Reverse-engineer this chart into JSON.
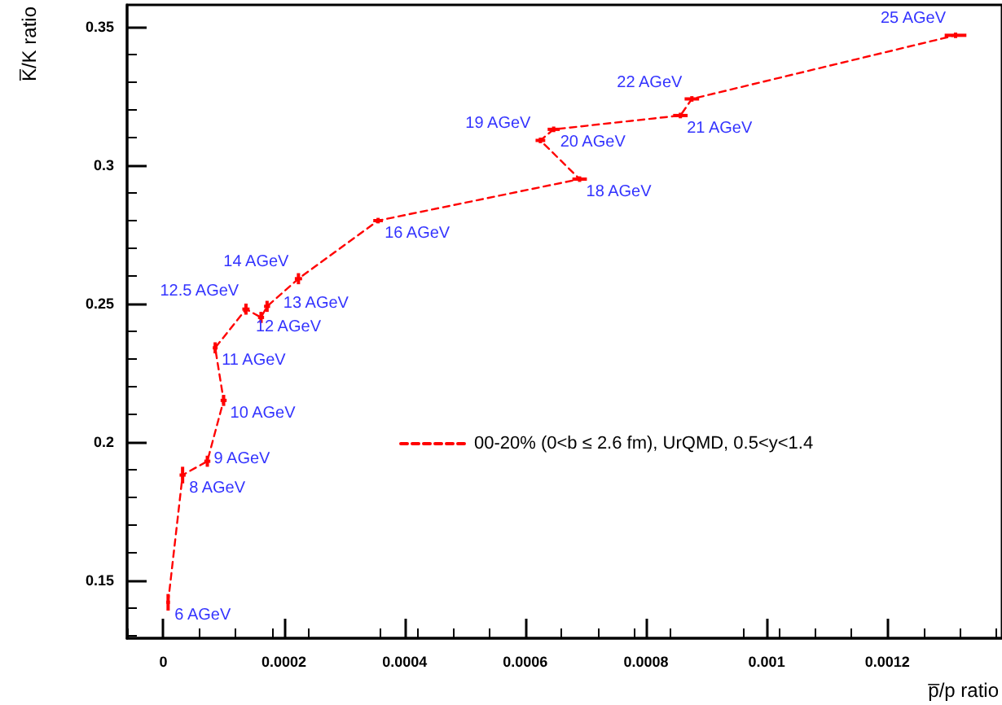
{
  "chart_data": {
    "type": "line",
    "xlabel": "p̅/p ratio",
    "ylabel": "K̅/K ratio",
    "xlim": [
      -6e-05,
      0.00139
    ],
    "xticks": [
      0,
      0.0002,
      0.0004,
      0.0006,
      0.0008,
      0.001,
      0.0012
    ],
    "ylim": [
      0.129,
      0.358
    ],
    "yticks": [
      0.15,
      0.2,
      0.25,
      0.3,
      0.35
    ],
    "x": [
      8e-06,
      3.2e-05,
      7.3e-05,
      0.0001,
      8.6e-05,
      0.000137,
      0.000162,
      0.000172,
      0.000224,
      0.000356,
      0.00069,
      0.000625,
      0.000647,
      0.000857,
      0.000876,
      0.001313
    ],
    "series": [
      {
        "name": "00-20% (0<b ≤ 2.6 fm), UrQMD, 0.5<y<1.4",
        "color": "#ff0000",
        "values": [
          0.142,
          0.188,
          0.193,
          0.215,
          0.234,
          0.248,
          0.245,
          0.249,
          0.259,
          0.28,
          0.295,
          0.309,
          0.313,
          0.318,
          0.324,
          0.347
        ],
        "errors": [
          0.003,
          0.003,
          0.002,
          0.002,
          0.002,
          0.002,
          0.002,
          0.002,
          0.002,
          0.001,
          0.001,
          0.001,
          0.001,
          0.001,
          0.001,
          0.001
        ],
        "xerrors": [
          3e-06,
          5e-06,
          5e-06,
          5e-06,
          4e-06,
          6e-06,
          5e-06,
          5e-06,
          6e-06,
          8e-06,
          1.2e-05,
          8e-06,
          1e-05,
          1.2e-05,
          1.2e-05,
          1.8e-05
        ]
      }
    ],
    "annotations": [
      {
        "text": "6 AGeV",
        "x": 8e-06,
        "y": 0.142
      },
      {
        "text": "8 AGeV",
        "x": 3.2e-05,
        "y": 0.188
      },
      {
        "text": "9 AGeV",
        "x": 7.3e-05,
        "y": 0.193
      },
      {
        "text": "10 AGeV",
        "x": 0.0001,
        "y": 0.215
      },
      {
        "text": "11 AGeV",
        "x": 8.6e-05,
        "y": 0.234
      },
      {
        "text": "12 AGeV",
        "x": 0.000137,
        "y": 0.248
      },
      {
        "text": "12.5 AGeV",
        "x": 0.000162,
        "y": 0.245
      },
      {
        "text": "13 AGeV",
        "x": 0.000172,
        "y": 0.249
      },
      {
        "text": "14 AGeV",
        "x": 0.000224,
        "y": 0.259
      },
      {
        "text": "16 AGeV",
        "x": 0.000356,
        "y": 0.28
      },
      {
        "text": "18 AGeV",
        "x": 0.00069,
        "y": 0.295
      },
      {
        "text": "19 AGeV",
        "x": 0.000625,
        "y": 0.309
      },
      {
        "text": "20 AGeV",
        "x": 0.000647,
        "y": 0.313
      },
      {
        "text": "21 AGeV",
        "x": 0.000857,
        "y": 0.318
      },
      {
        "text": "22 AGeV",
        "x": 0.000876,
        "y": 0.324
      },
      {
        "text": "25 AGeV",
        "x": 0.001313,
        "y": 0.347
      }
    ],
    "legend": "center",
    "grid": false,
    "marker": "none",
    "line_style": "dashed"
  }
}
